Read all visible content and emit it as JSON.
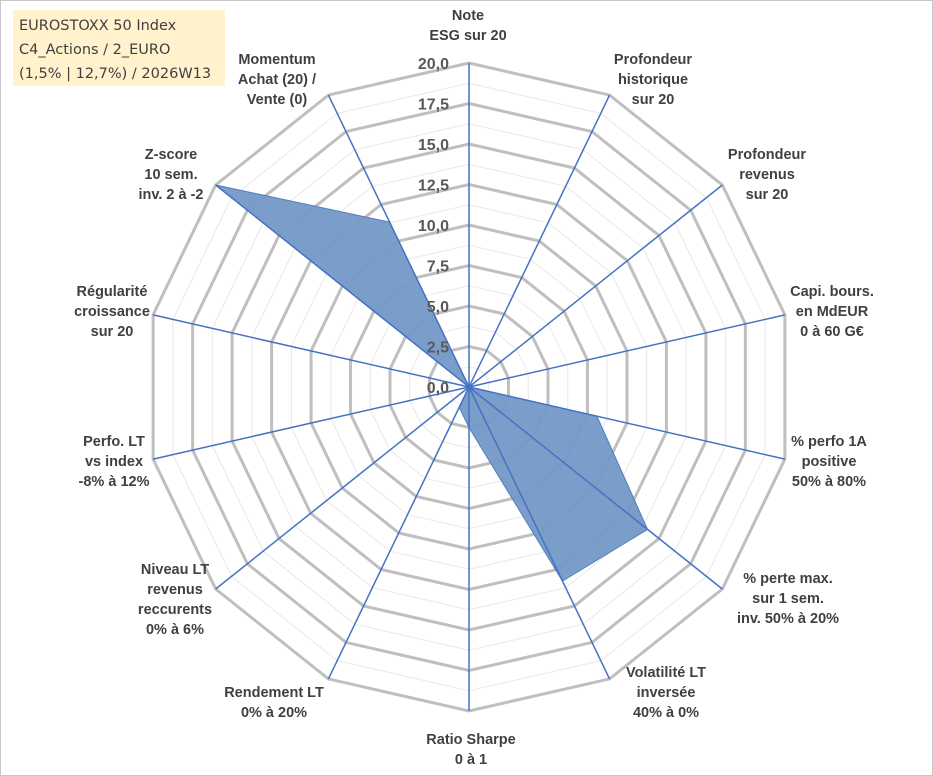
{
  "title": {
    "line1": "EUROSTOXX 50 Index",
    "line2": "C4_Actions / 2_EURO",
    "line3": "(1,5% | 12,7%) / 2026W13"
  },
  "chart_data": {
    "type": "radar",
    "rmin": 0,
    "rmax": 20,
    "major_step": 2.5,
    "minor_step": 1.25,
    "tick_labels": [
      "0,0",
      "2,5",
      "5,0",
      "7,5",
      "10,0",
      "12,5",
      "15,0",
      "17,5",
      "20,0"
    ],
    "axes": [
      {
        "label": [
          "Note",
          "ESG sur 20"
        ],
        "value": 0
      },
      {
        "label": [
          "Profondeur",
          "historique",
          "sur 20"
        ],
        "value": 0
      },
      {
        "label": [
          "Profondeur",
          "revenus",
          "sur 20"
        ],
        "value": 0
      },
      {
        "label": [
          "Capi. bours.",
          "en MdEUR",
          "0 à 60 G€"
        ],
        "value": 0
      },
      {
        "label": [
          "% perfo 1A",
          "positive",
          "50% à 80%"
        ],
        "value": 8.1
      },
      {
        "label": [
          "% perte max.",
          "sur 1 sem.",
          "inv. 50% à 20%"
        ],
        "value": 14.1
      },
      {
        "label": [
          "Volatilité LT",
          "inversée",
          "40% à 0%"
        ],
        "value": 13.3
      },
      {
        "label": [
          "Ratio Sharpe",
          "0 à 1"
        ],
        "value": 2.5
      },
      {
        "label": [
          "Rendement LT",
          "0% à 20%"
        ],
        "value": 1.4
      },
      {
        "label": [
          "Niveau LT",
          "revenus",
          "reccurents",
          "0% à 6%"
        ],
        "value": 0
      },
      {
        "label": [
          "Perfo. LT",
          "vs index",
          "-8% à 12%"
        ],
        "value": 4.4
      },
      {
        "label": [
          "Régularité",
          "croissance",
          "sur 20"
        ],
        "value": 0
      },
      {
        "label": [
          "Z-score",
          "10 sem.",
          "inv. 2 à -2"
        ],
        "value": 20
      },
      {
        "label": [
          "Momentum",
          "Achat (20) /",
          "Vente (0)"
        ],
        "value": 11.3
      }
    ],
    "colors": {
      "fill": "#7399c6",
      "stroke": "#4f7fbf",
      "axis": "#4472c4",
      "grid_major": "#bfbfbf",
      "grid_minor": "#e8e8e8"
    }
  }
}
